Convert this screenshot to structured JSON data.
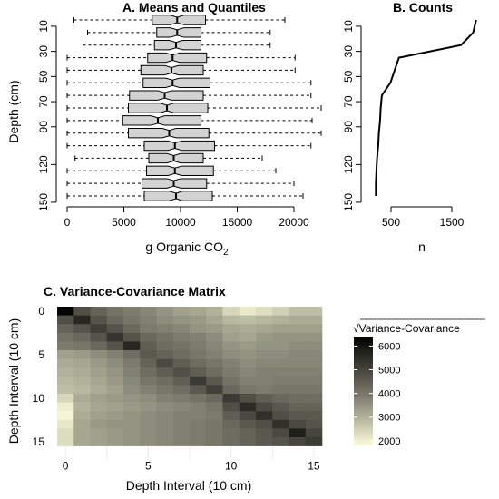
{
  "chart_data": [
    {
      "panel": "A",
      "type": "boxplot",
      "title": "A. Means and Quantiles",
      "xlabel_main": "g Organic CO",
      "xlabel_sub": "2",
      "ylabel": "Depth (cm)",
      "xticks": [
        0,
        5000,
        10000,
        15000,
        20000
      ],
      "yticks": [
        10,
        30,
        50,
        70,
        90,
        120,
        150
      ],
      "xlim": [
        0,
        23000
      ],
      "ylim": [
        5,
        155
      ],
      "fill_color": "#d3d3d3",
      "boxes": [
        {
          "depth": 5,
          "min": 600,
          "q1": 7500,
          "median": 9700,
          "q3": 12200,
          "max": 19200
        },
        {
          "depth": 15,
          "min": 1800,
          "q1": 7900,
          "median": 9700,
          "q3": 11800,
          "max": 17900
        },
        {
          "depth": 25,
          "min": 1400,
          "q1": 7700,
          "median": 9600,
          "q3": 11800,
          "max": 17900
        },
        {
          "depth": 35,
          "min": 0,
          "q1": 7100,
          "median": 9300,
          "q3": 12300,
          "max": 20100
        },
        {
          "depth": 45,
          "min": 0,
          "q1": 6500,
          "median": 9200,
          "q3": 12000,
          "max": 20100
        },
        {
          "depth": 55,
          "min": 0,
          "q1": 6700,
          "median": 9300,
          "q3": 12600,
          "max": 21500
        },
        {
          "depth": 65,
          "min": 0,
          "q1": 5500,
          "median": 8600,
          "q3": 12000,
          "max": 21500
        },
        {
          "depth": 75,
          "min": 0,
          "q1": 5400,
          "median": 8800,
          "q3": 12400,
          "max": 22400
        },
        {
          "depth": 85,
          "min": 0,
          "q1": 4900,
          "median": 8000,
          "q3": 11800,
          "max": 21600
        },
        {
          "depth": 95,
          "min": 0,
          "q1": 5400,
          "median": 9000,
          "q3": 12500,
          "max": 22400
        },
        {
          "depth": 105,
          "min": 0,
          "q1": 6800,
          "median": 9500,
          "q3": 13000,
          "max": 21500
        },
        {
          "depth": 115,
          "min": 700,
          "q1": 7200,
          "median": 9400,
          "q3": 12000,
          "max": 17200
        },
        {
          "depth": 125,
          "min": 0,
          "q1": 7000,
          "median": 9500,
          "q3": 12900,
          "max": 18400
        },
        {
          "depth": 135,
          "min": 0,
          "q1": 6600,
          "median": 9400,
          "q3": 12300,
          "max": 20000
        },
        {
          "depth": 145,
          "min": 0,
          "q1": 6800,
          "median": 9600,
          "q3": 12800,
          "max": 20800
        }
      ]
    },
    {
      "panel": "B",
      "type": "line",
      "title": "B. Counts",
      "xlabel": "n",
      "xticks": [
        500,
        1500
      ],
      "yticks": [
        10,
        30,
        50,
        70,
        90,
        120,
        150
      ],
      "xlim": [
        200,
        1950
      ],
      "ylim": [
        5,
        155
      ],
      "points": [
        {
          "depth": 5,
          "n": 1900
        },
        {
          "depth": 15,
          "n": 1850
        },
        {
          "depth": 25,
          "n": 1650
        },
        {
          "depth": 35,
          "n": 630
        },
        {
          "depth": 45,
          "n": 560
        },
        {
          "depth": 55,
          "n": 490
        },
        {
          "depth": 65,
          "n": 350
        },
        {
          "depth": 75,
          "n": 330
        },
        {
          "depth": 85,
          "n": 320
        },
        {
          "depth": 95,
          "n": 300
        },
        {
          "depth": 105,
          "n": 290
        },
        {
          "depth": 115,
          "n": 270
        },
        {
          "depth": 125,
          "n": 260
        },
        {
          "depth": 135,
          "n": 250
        },
        {
          "depth": 145,
          "n": 250
        }
      ]
    },
    {
      "panel": "C",
      "type": "heatmap",
      "title": "C. Variance-Covariance Matrix",
      "xlabel": "Depth Interval (10 cm)",
      "ylabel": "Depth Interval (10 cm)",
      "xticks": [
        0,
        5,
        10,
        15
      ],
      "yticks": [
        0,
        5,
        10,
        15
      ],
      "legend_title": "Variance-Covariance",
      "legend_sqrt": "√",
      "legend_ticks": [
        2000,
        3000,
        4000,
        5000,
        6000
      ],
      "color_range": [
        1800,
        6400
      ],
      "color_low": "#fbfbd9",
      "color_mid": "#7d7d6f",
      "color_high": "#000000",
      "matrix": [
        [
          6300,
          4800,
          4400,
          4100,
          3900,
          3700,
          3500,
          3300,
          3200,
          3000,
          2400,
          2100,
          2300,
          2500,
          2800,
          2800
        ],
        [
          4800,
          5600,
          4700,
          4300,
          4000,
          3800,
          3600,
          3500,
          3400,
          3200,
          2900,
          2800,
          2900,
          3000,
          3100,
          3100
        ],
        [
          4400,
          4700,
          5100,
          4700,
          4300,
          3900,
          3800,
          3700,
          3500,
          3400,
          3200,
          3100,
          3200,
          3300,
          3300,
          3300
        ],
        [
          4100,
          4300,
          4700,
          5300,
          4700,
          4300,
          4100,
          3900,
          3800,
          3600,
          3300,
          3200,
          3400,
          3500,
          3500,
          3500
        ],
        [
          3900,
          4000,
          4300,
          4700,
          5600,
          4500,
          4200,
          4100,
          3900,
          3700,
          3500,
          3400,
          3500,
          3500,
          3600,
          3600
        ],
        [
          3300,
          3400,
          3600,
          3800,
          4200,
          4600,
          4400,
          4200,
          4000,
          3800,
          3600,
          3500,
          3600,
          3600,
          3700,
          3700
        ],
        [
          3100,
          3200,
          3400,
          3600,
          3900,
          4400,
          4900,
          4500,
          4200,
          4000,
          3800,
          3600,
          3700,
          3700,
          3700,
          3700
        ],
        [
          3000,
          3100,
          3300,
          3500,
          3800,
          4200,
          4500,
          4800,
          4500,
          4200,
          3900,
          3700,
          3800,
          3800,
          3800,
          3800
        ],
        [
          2900,
          3000,
          3200,
          3400,
          3700,
          4000,
          4200,
          4500,
          5200,
          4600,
          4100,
          3800,
          3800,
          3900,
          3900,
          3900
        ],
        [
          2800,
          2900,
          3100,
          3300,
          3600,
          3800,
          4000,
          4200,
          4600,
          5100,
          4300,
          4000,
          3900,
          4000,
          4000,
          4000
        ],
        [
          2400,
          3100,
          3300,
          3400,
          3500,
          3600,
          3800,
          3900,
          4100,
          4300,
          5200,
          4800,
          4500,
          4300,
          4200,
          4200
        ],
        [
          2000,
          3000,
          3200,
          3300,
          3400,
          3500,
          3600,
          3700,
          3800,
          4000,
          4800,
          5500,
          4900,
          4600,
          4400,
          4400
        ],
        [
          1900,
          3100,
          3300,
          3400,
          3500,
          3600,
          3700,
          3800,
          3800,
          3900,
          4500,
          4900,
          5400,
          4800,
          4600,
          4600
        ],
        [
          2100,
          3200,
          3400,
          3500,
          3500,
          3600,
          3700,
          3800,
          3900,
          4000,
          4300,
          4600,
          4800,
          5400,
          4900,
          4700
        ],
        [
          2300,
          3200,
          3300,
          3400,
          3500,
          3600,
          3700,
          3800,
          3900,
          4000,
          4200,
          4400,
          4600,
          4900,
          5800,
          5000
        ],
        [
          2300,
          3200,
          3300,
          3400,
          3500,
          3600,
          3700,
          3800,
          3900,
          4000,
          4200,
          4400,
          4600,
          4700,
          5000,
          5200
        ]
      ]
    }
  ]
}
